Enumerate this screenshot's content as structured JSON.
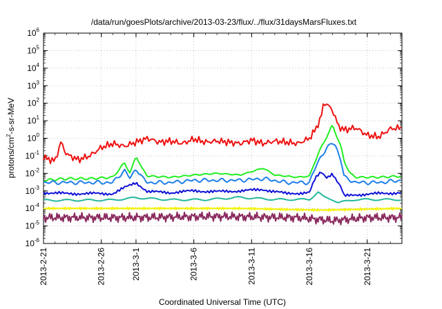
{
  "chart_data": {
    "type": "line",
    "title": "/data/run/goesPlots/archive/2013-03-23/flux/../flux/31daysMarsFluxes.txt",
    "xlabel": "Coordinated Universal Time (UTC)",
    "ylabel": {
      "base": "protons/cm",
      "sup": "2",
      "rest": "-s-sr-MeV"
    },
    "x_range_days": [
      "2013-02-21",
      "2013-03-24"
    ],
    "y_scale": "log",
    "ylim": [
      1e-06,
      1000000.0
    ],
    "grid": true,
    "x_ticks": [
      "2013-2-21",
      "2013-2-26",
      "2013-3-1",
      "2013-3-6",
      "2013-3-11",
      "2013-3-16",
      "2013-3-21"
    ],
    "y_ticks": [
      {
        "base": "10",
        "exp": "-6"
      },
      {
        "base": "10",
        "exp": "-5"
      },
      {
        "base": "10",
        "exp": "-4"
      },
      {
        "base": "10",
        "exp": "-3"
      },
      {
        "base": "10",
        "exp": "-2"
      },
      {
        "base": "10",
        "exp": "-1"
      },
      {
        "base": "10",
        "exp": "0"
      },
      {
        "base": "10",
        "exp": "1"
      },
      {
        "base": "10",
        "exp": "2"
      },
      {
        "base": "10",
        "exp": "3"
      },
      {
        "base": "10",
        "exp": "4"
      },
      {
        "base": "10",
        "exp": "5"
      },
      {
        "base": "10",
        "exp": "6"
      }
    ],
    "series": [
      {
        "color": "#ee1111",
        "points": [
          [
            "2013-02-21",
            0.08
          ],
          [
            "2013-02-22",
            0.05
          ],
          [
            "2013-02-22T12",
            0.6
          ],
          [
            "2013-02-23",
            0.12
          ],
          [
            "2013-02-24",
            0.06
          ],
          [
            "2013-02-25",
            0.1
          ],
          [
            "2013-02-26",
            0.3
          ],
          [
            "2013-02-27",
            0.5
          ],
          [
            "2013-02-28",
            0.35
          ],
          [
            "2013-03-01",
            0.6
          ],
          [
            "2013-03-02",
            1.0
          ],
          [
            "2013-03-03",
            0.6
          ],
          [
            "2013-03-04",
            0.7
          ],
          [
            "2013-03-05",
            0.5
          ],
          [
            "2013-03-06",
            0.9
          ],
          [
            "2013-03-07",
            0.6
          ],
          [
            "2013-03-08",
            0.7
          ],
          [
            "2013-03-09",
            0.6
          ],
          [
            "2013-03-10",
            0.5
          ],
          [
            "2013-03-11",
            0.8
          ],
          [
            "2013-03-12",
            0.5
          ],
          [
            "2013-03-13",
            0.7
          ],
          [
            "2013-03-14",
            0.6
          ],
          [
            "2013-03-15",
            0.5
          ],
          [
            "2013-03-16",
            1.0
          ],
          [
            "2013-03-16T12",
            3
          ],
          [
            "2013-03-17",
            15
          ],
          [
            "2013-03-17T06",
            120
          ],
          [
            "2013-03-17T18",
            60
          ],
          [
            "2013-03-18",
            40
          ],
          [
            "2013-03-18T12",
            5
          ],
          [
            "2013-03-19",
            3
          ],
          [
            "2013-03-20",
            4
          ],
          [
            "2013-03-21",
            1.5
          ],
          [
            "2013-03-22",
            1.2
          ],
          [
            "2013-03-23",
            3.5
          ],
          [
            "2013-03-24",
            4
          ]
        ]
      },
      {
        "color": "#22ee22",
        "points": [
          [
            "2013-02-21",
            0.004
          ],
          [
            "2013-02-23",
            0.005
          ],
          [
            "2013-02-25",
            0.005
          ],
          [
            "2013-02-27",
            0.006
          ],
          [
            "2013-02-28",
            0.04
          ],
          [
            "2013-02-28T12",
            0.01
          ],
          [
            "2013-03-01",
            0.1
          ],
          [
            "2013-03-01T12",
            0.02
          ],
          [
            "2013-03-02",
            0.007
          ],
          [
            "2013-03-04",
            0.006
          ],
          [
            "2013-03-06",
            0.008
          ],
          [
            "2013-03-08",
            0.01
          ],
          [
            "2013-03-10",
            0.008
          ],
          [
            "2013-03-12",
            0.02
          ],
          [
            "2013-03-13",
            0.008
          ],
          [
            "2013-03-15",
            0.006
          ],
          [
            "2013-03-16",
            0.007
          ],
          [
            "2013-03-16T12",
            0.05
          ],
          [
            "2013-03-17",
            0.3
          ],
          [
            "2013-03-17T12",
            1.2
          ],
          [
            "2013-03-18",
            6
          ],
          [
            "2013-03-18T06",
            2
          ],
          [
            "2013-03-18T18",
            0.3
          ],
          [
            "2013-03-19",
            0.05
          ],
          [
            "2013-03-19T12",
            0.01
          ],
          [
            "2013-03-20",
            0.006
          ],
          [
            "2013-03-22",
            0.006
          ],
          [
            "2013-03-24",
            0.007
          ]
        ]
      },
      {
        "color": "#1e7fe8",
        "points": [
          [
            "2013-02-21",
            0.003
          ],
          [
            "2013-02-23",
            0.003
          ],
          [
            "2013-02-25",
            0.003
          ],
          [
            "2013-02-27",
            0.003
          ],
          [
            "2013-02-28",
            0.015
          ],
          [
            "2013-02-28T12",
            0.005
          ],
          [
            "2013-03-01",
            0.02
          ],
          [
            "2013-03-01T12",
            0.006
          ],
          [
            "2013-03-02",
            0.003
          ],
          [
            "2013-03-04",
            0.003
          ],
          [
            "2013-03-06",
            0.004
          ],
          [
            "2013-03-08",
            0.004
          ],
          [
            "2013-03-10",
            0.004
          ],
          [
            "2013-03-12",
            0.005
          ],
          [
            "2013-03-14",
            0.003
          ],
          [
            "2013-03-16",
            0.003
          ],
          [
            "2013-03-16T12",
            0.02
          ],
          [
            "2013-03-17",
            0.1
          ],
          [
            "2013-03-17T12",
            0.25
          ],
          [
            "2013-03-18",
            0.6
          ],
          [
            "2013-03-18T06",
            0.4
          ],
          [
            "2013-03-18T18",
            0.05
          ],
          [
            "2013-03-19",
            0.006
          ],
          [
            "2013-03-20",
            0.003
          ],
          [
            "2013-03-22",
            0.003
          ],
          [
            "2013-03-24",
            0.004
          ]
        ]
      },
      {
        "color": "#1010d8",
        "points": [
          [
            "2013-02-21",
            0.0008
          ],
          [
            "2013-02-23",
            0.0007
          ],
          [
            "2013-02-25",
            0.0007
          ],
          [
            "2013-02-27",
            0.0007
          ],
          [
            "2013-02-28",
            0.0015
          ],
          [
            "2013-03-01",
            0.003
          ],
          [
            "2013-03-02",
            0.0009
          ],
          [
            "2013-03-04",
            0.0008
          ],
          [
            "2013-03-06",
            0.001
          ],
          [
            "2013-03-08",
            0.0009
          ],
          [
            "2013-03-10",
            0.001
          ],
          [
            "2013-03-12",
            0.0012
          ],
          [
            "2013-03-14",
            0.0007
          ],
          [
            "2013-03-16",
            0.0008
          ],
          [
            "2013-03-16T12",
            0.005
          ],
          [
            "2013-03-17",
            0.012
          ],
          [
            "2013-03-17T12",
            0.006
          ],
          [
            "2013-03-18",
            0.01
          ],
          [
            "2013-03-18T06",
            0.005
          ],
          [
            "2013-03-18T18",
            0.0015
          ],
          [
            "2013-03-19",
            0.0005
          ],
          [
            "2013-03-20",
            0.0006
          ],
          [
            "2013-03-22",
            0.0007
          ],
          [
            "2013-03-24",
            0.0008
          ]
        ]
      },
      {
        "color": "#22b89a",
        "points": [
          [
            "2013-02-21",
            0.0003
          ],
          [
            "2013-02-23",
            0.0003
          ],
          [
            "2013-02-25",
            0.0003
          ],
          [
            "2013-02-27",
            0.0003
          ],
          [
            "2013-03-01",
            0.0004
          ],
          [
            "2013-03-04",
            0.0003
          ],
          [
            "2013-03-07",
            0.0003
          ],
          [
            "2013-03-10",
            0.0004
          ],
          [
            "2013-03-13",
            0.0003
          ],
          [
            "2013-03-16",
            0.0003
          ],
          [
            "2013-03-16T18",
            0.0008
          ],
          [
            "2013-03-17T06",
            0.0004
          ],
          [
            "2013-03-18",
            0.0003
          ],
          [
            "2013-03-18T12",
            0.0002
          ],
          [
            "2013-03-20",
            0.0003
          ],
          [
            "2013-03-24",
            0.0003
          ]
        ]
      },
      {
        "color": "#f2f200",
        "points": [
          [
            "2013-02-21",
            0.0001
          ],
          [
            "2013-03-01",
            0.0001
          ],
          [
            "2013-03-10",
            0.0001
          ],
          [
            "2013-03-17",
            8e-05
          ],
          [
            "2013-03-24",
            0.0001
          ]
        ]
      },
      {
        "color": "#8a2a5e",
        "points": [
          [
            "2013-02-21",
            3e-05
          ],
          [
            "2013-02-28",
            3e-05
          ],
          [
            "2013-03-08",
            3.5e-05
          ],
          [
            "2013-03-15",
            3e-05
          ],
          [
            "2013-03-18",
            2e-05
          ],
          [
            "2013-03-21",
            3e-05
          ],
          [
            "2013-03-24",
            3e-05
          ]
        ]
      }
    ]
  }
}
